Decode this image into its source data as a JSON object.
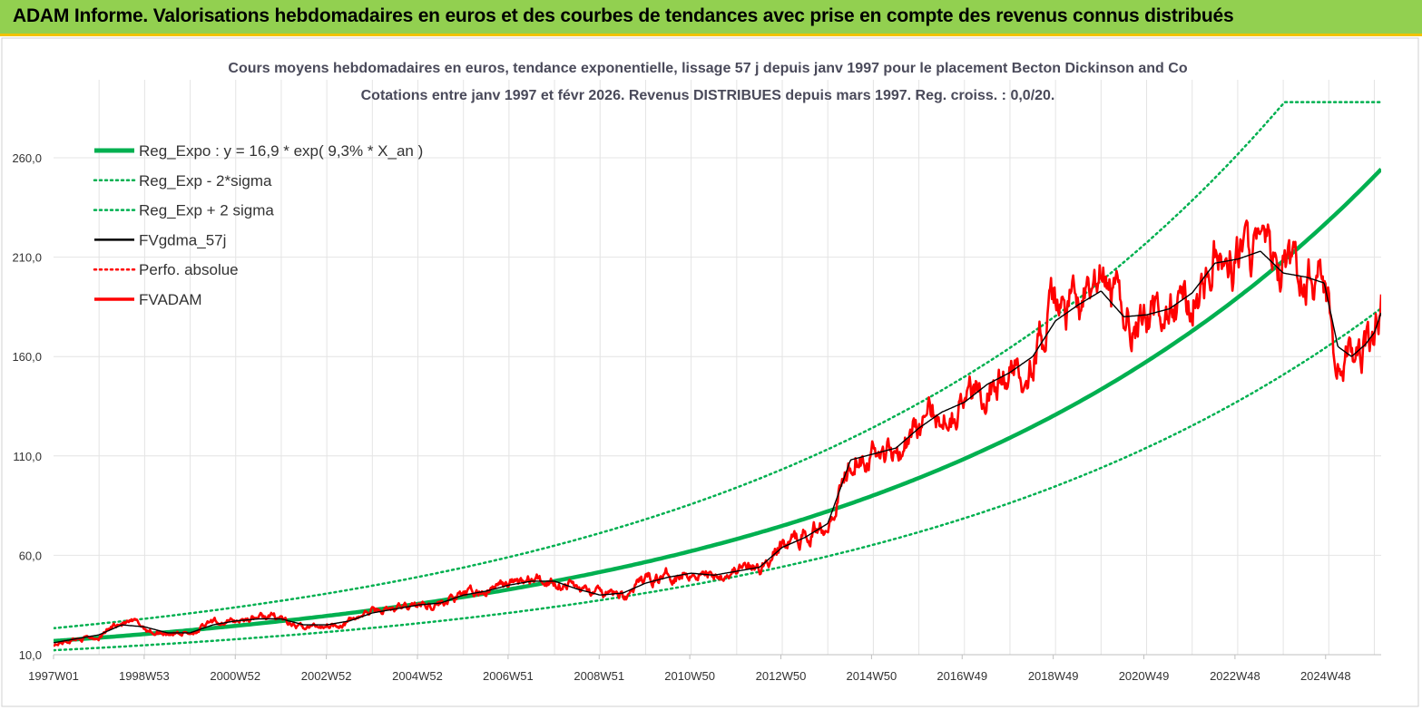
{
  "header": {
    "title": "ADAM Informe. Valorisations hebdomadaires en euros et des courbes de tendances avec prise en compte des revenus connus distribués"
  },
  "chart_data": {
    "type": "line",
    "title_line1": "Cours moyens hebdomadaires en euros, tendance exponentielle, lissage 57 j depuis janv 1997 pour le placement Becton Dickinson and Co",
    "title_line2": "Cotations entre janv 1997 et févr 2026. Revenus DISTRIBUES depuis mars 1997. Reg. croiss. : 0,0/20.",
    "x_range": [
      1997.0,
      2026.15
    ],
    "ylim": [
      10,
      290
    ],
    "y_ticks": [
      10,
      60,
      110,
      160,
      210,
      260
    ],
    "y_tick_labels": [
      "10,0",
      "60,0",
      "110,0",
      "160,0",
      "210,0",
      "260,0"
    ],
    "x_ticks": [
      1997.0,
      1998.99,
      2000.99,
      2002.99,
      2004.99,
      2006.98,
      2008.98,
      2010.97,
      2012.97,
      2014.96,
      2016.95,
      2018.95,
      2020.94,
      2022.94,
      2024.93
    ],
    "x_tick_labels": [
      "1997W01",
      "1998W53",
      "2000W52",
      "2002W52",
      "2004W52",
      "2006W51",
      "2008W51",
      "2010W50",
      "2012W50",
      "2014W50",
      "2016W49",
      "2018W49",
      "2020W49",
      "2022W48",
      "2024W48"
    ],
    "regression": {
      "a": 16.9,
      "rate": 0.093,
      "sigma_factor": 1.38
    },
    "series": [
      {
        "name": "Reg_Expo : y = 16,9 * exp( 9,3% *  X_an )",
        "color": "#00b050",
        "style": "solid-thick"
      },
      {
        "name": "Reg_Exp - 2*sigma",
        "color": "#00b050",
        "style": "dotted"
      },
      {
        "name": "Reg_Exp + 2 sigma",
        "color": "#00b050",
        "style": "dotted"
      },
      {
        "name": "FVgdma_57j",
        "color": "#000000",
        "style": "solid-thin"
      },
      {
        "name": "Perfo. absolue",
        "color": "#ff0000",
        "style": "dotted"
      },
      {
        "name": "FVADAM",
        "color": "#ff0000",
        "style": "solid"
      }
    ],
    "fvadam_anchors": {
      "x": [
        1997.0,
        1997.5,
        1998.0,
        1998.4,
        1998.8,
        1999.2,
        1999.6,
        2000.0,
        2000.5,
        2001.0,
        2001.5,
        2002.0,
        2002.2,
        2002.6,
        2003.0,
        2003.4,
        2004.0,
        2004.5,
        2005.0,
        2005.5,
        2006.0,
        2006.5,
        2007.0,
        2007.5,
        2008.0,
        2008.4,
        2008.8,
        2009.2,
        2009.6,
        2010.0,
        2010.5,
        2011.0,
        2011.5,
        2012.0,
        2012.5,
        2013.0,
        2013.5,
        2014.0,
        2014.6,
        2015.0,
        2015.5,
        2016.0,
        2016.5,
        2017.0,
        2017.5,
        2018.0,
        2018.5,
        2019.0,
        2019.5,
        2020.0,
        2020.5,
        2021.0,
        2021.5,
        2022.0,
        2022.5,
        2023.0,
        2023.5,
        2024.0,
        2024.5,
        2024.9,
        2025.2,
        2025.5,
        2025.8,
        2026.0,
        2026.15
      ],
      "y": [
        15,
        18,
        19,
        26,
        26,
        21,
        21,
        21,
        26,
        27,
        29,
        29,
        24,
        24,
        25,
        26,
        32,
        33,
        35,
        36,
        40,
        42,
        46,
        47,
        47,
        45,
        41,
        40,
        40,
        48,
        50,
        52,
        50,
        53,
        53,
        65,
        70,
        78,
        115,
        112,
        114,
        125,
        133,
        137,
        147,
        150,
        160,
        185,
        185,
        195,
        182,
        180,
        182,
        190,
        210,
        208,
        215,
        200,
        200,
        200,
        158,
        160,
        165,
        170,
        188
      ]
    },
    "fvgdma_anchors": {
      "x": [
        1997.0,
        1997.5,
        1998.0,
        1998.5,
        1999.0,
        1999.5,
        2000.0,
        2000.5,
        2001.0,
        2001.5,
        2002.0,
        2002.5,
        2003.0,
        2003.5,
        2004.0,
        2004.5,
        2005.0,
        2005.5,
        2006.0,
        2006.5,
        2007.0,
        2007.5,
        2008.0,
        2008.5,
        2009.0,
        2009.5,
        2010.0,
        2010.5,
        2011.0,
        2011.5,
        2012.0,
        2012.5,
        2013.0,
        2013.5,
        2014.0,
        2014.5,
        2015.0,
        2015.5,
        2016.0,
        2016.5,
        2017.0,
        2017.5,
        2018.0,
        2018.5,
        2019.0,
        2019.5,
        2020.0,
        2020.5,
        2021.0,
        2021.5,
        2022.0,
        2022.5,
        2023.0,
        2023.5,
        2024.0,
        2024.5,
        2024.9,
        2025.2,
        2025.5,
        2025.8,
        2026.0,
        2026.15
      ],
      "y": [
        16,
        18,
        20,
        25,
        24,
        21,
        21,
        25,
        27,
        28,
        28,
        25,
        25,
        27,
        31,
        33,
        35,
        36,
        40,
        42,
        45,
        47,
        47,
        43,
        40,
        41,
        46,
        49,
        51,
        50,
        52,
        54,
        64,
        69,
        76,
        108,
        111,
        114,
        124,
        132,
        137,
        146,
        152,
        160,
        178,
        186,
        193,
        180,
        181,
        184,
        192,
        207,
        209,
        213,
        202,
        200,
        197,
        165,
        160,
        166,
        172,
        182
      ]
    }
  }
}
